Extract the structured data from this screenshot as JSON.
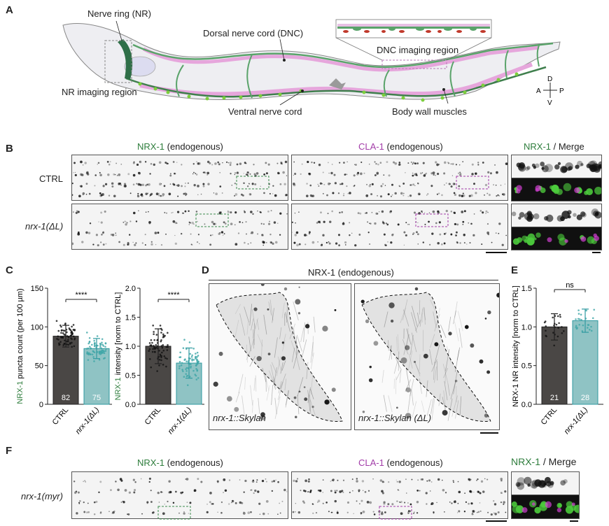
{
  "panelA": {
    "letter": "A",
    "nerve_ring": "Nerve ring (NR)",
    "dnc": "Dorsal nerve cord (DNC)",
    "dnc_region": "DNC imaging region",
    "nr_region": "NR imaging region",
    "vnc": "Ventral nerve cord",
    "muscles": "Body wall muscles",
    "compass": {
      "d": "D",
      "v": "V",
      "a": "A",
      "p": "P"
    }
  },
  "panelB": {
    "letter": "B",
    "col1_marker": "NRX-1",
    "col1_rest": " (endogenous)",
    "col2_marker": "CLA-1",
    "col2_rest": " (endogenous)",
    "col3_marker": "NRX-1",
    "col3_rest": " / Merge",
    "row1": "CTRL",
    "row2": "nrx-1(ΔL)"
  },
  "panelC": {
    "letter": "C",
    "chart_data": [
      {
        "type": "bar",
        "categories": [
          "CTRL",
          "nrx-1(ΔL)"
        ],
        "values": [
          88,
          72
        ],
        "errors": [
          14,
          13
        ],
        "n": [
          "82",
          "75"
        ],
        "ylabel_marker": "NRX-1",
        "ylabel_rest": " puncta count (per 100 µm)",
        "ylim": [
          0,
          150
        ],
        "yticks": [
          "0",
          "50",
          "100",
          "150"
        ],
        "significance": "****",
        "colors": [
          "#4a4745",
          "#8fc3c4"
        ]
      },
      {
        "type": "bar",
        "categories": [
          "CTRL",
          "nrx-1(ΔL)"
        ],
        "values": [
          1.0,
          0.71
        ],
        "errors": [
          0.3,
          0.26
        ],
        "ylabel_marker": "NRX-1",
        "ylabel_rest": " intensity [norm to CTRL]",
        "ylim": [
          0,
          2.0
        ],
        "yticks": [
          "0.0",
          "0.5",
          "1.0",
          "1.5",
          "2.0"
        ],
        "significance": "****",
        "colors": [
          "#4a4745",
          "#8fc3c4"
        ]
      }
    ]
  },
  "panelD": {
    "letter": "D",
    "title": "NRX-1 (endogenous)",
    "left": "nrx-1::Skylan",
    "right": "nrx-1::Skylan (ΔL)"
  },
  "panelE": {
    "letter": "E",
    "chart_data": {
      "type": "bar",
      "categories": [
        "CTRL",
        "nrx-1(ΔL)"
      ],
      "values": [
        1.0,
        1.08
      ],
      "errors": [
        0.17,
        0.15
      ],
      "n": [
        "21",
        "28"
      ],
      "ylabel": "NRX-1 NR intensity [norm to CTRL]",
      "ylim": [
        0,
        1.5
      ],
      "yticks": [
        "0.0",
        "0.5",
        "1.0",
        "1.5"
      ],
      "significance": "ns",
      "colors": [
        "#4a4745",
        "#8fc3c4"
      ]
    }
  },
  "panelF": {
    "letter": "F",
    "col1_marker": "NRX-1",
    "col1_rest": " (endogenous)",
    "col2_marker": "CLA-1",
    "col2_rest": " (endogenous)",
    "col3_marker": "NRX-1",
    "col3_rest": " / Merge",
    "row1": "nrx-1(myr)"
  },
  "colors": {
    "green": "#2e7d3c",
    "magenta": "#a23ca8",
    "ctrl_bar": "#4a4745",
    "mut_bar": "#8fc3c4"
  }
}
